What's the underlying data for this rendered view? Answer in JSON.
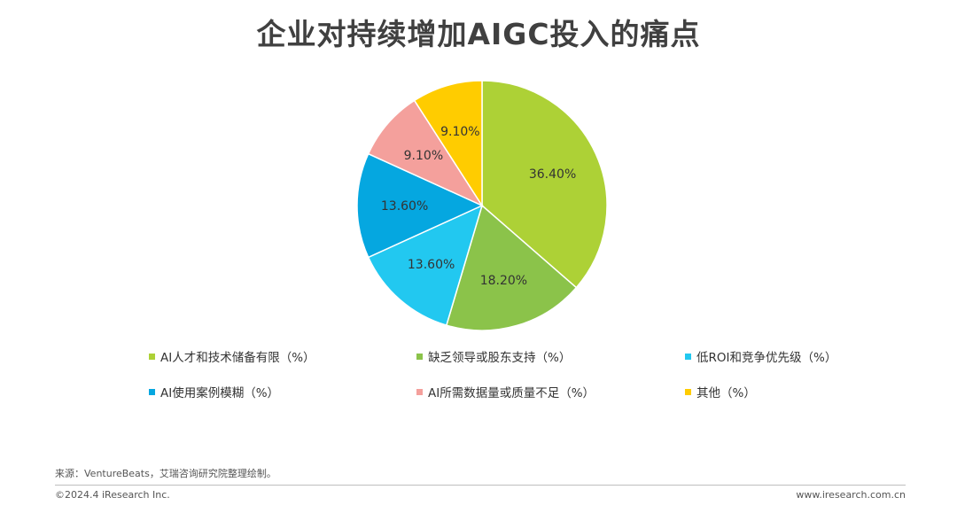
{
  "chart_data": {
    "type": "pie",
    "title": "企业对持续增加AIGC投入的痛点",
    "slices": [
      {
        "label": "AI人才和技术储备有限（%）",
        "value": 36.4,
        "display": "36.40%",
        "color": "#add136"
      },
      {
        "label": "缺乏领导或股东支持（%）",
        "value": 18.2,
        "display": "18.20%",
        "color": "#8bc34a"
      },
      {
        "label": "低ROI和竞争优先级（%）",
        "value": 13.6,
        "display": "13.60%",
        "color": "#22c8f0"
      },
      {
        "label": "AI使用案例模糊（%）",
        "value": 13.6,
        "display": "13.60%",
        "color": "#05a7e0"
      },
      {
        "label": "AI所需数据量或质量不足（%）",
        "value": 9.1,
        "display": "9.10%",
        "color": "#f4a09c"
      },
      {
        "label": "其他（%）",
        "value": 9.1,
        "display": "9.10%",
        "color": "#ffcc00"
      }
    ]
  },
  "footer": {
    "source": "来源：VentureBeats，艾瑞咨询研究院整理绘制。",
    "copyright": "©2024.4 iResearch Inc.",
    "website": "www.iresearch.com.cn"
  }
}
